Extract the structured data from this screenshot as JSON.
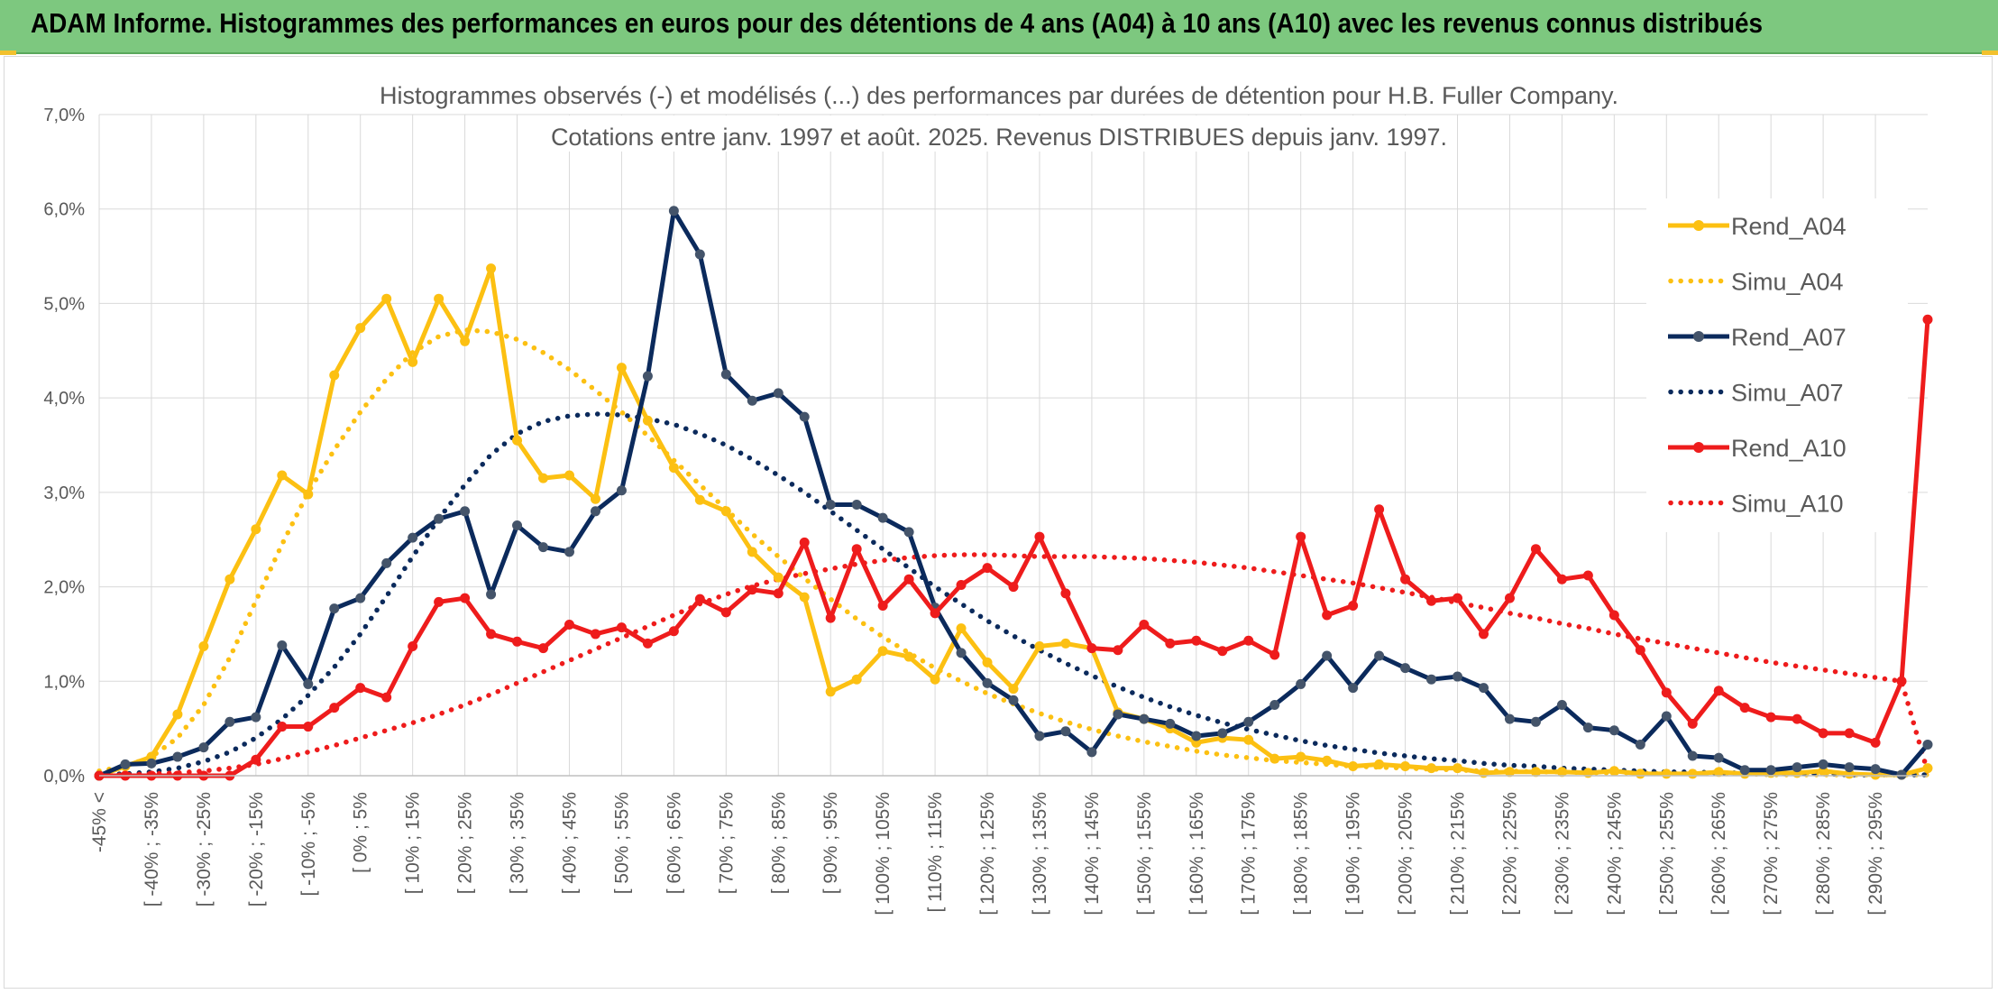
{
  "header": {
    "title": "ADAM Informe. Histogrammes des performances en euros pour des détentions de 4 ans (A04) à 10 ans (A10) avec les revenus connus distribués"
  },
  "chart_data": {
    "type": "line",
    "title": "Histogrammes observés (-) et modélisés (...) des performances par durées de détention pour H.B. Fuller Company.",
    "subtitle": "Cotations entre janv. 1997 et août. 2025. Revenus DISTRIBUES depuis janv. 1997.",
    "xlabel": "",
    "ylabel": "",
    "ylim": [
      0,
      0.07
    ],
    "y_ticks": [
      "0,0%",
      "1,0%",
      "2,0%",
      "3,0%",
      "4,0%",
      "5,0%",
      "6,0%",
      "7,0%"
    ],
    "grid": true,
    "legend_position": "right",
    "tick_labels": [
      "-45% <",
      "[ -40% ; -35%",
      "[ -30% ; -25%",
      "[ -20% ; -15%",
      "[ -10% ; -5%",
      "[ 0% ; 5%",
      "[ 10% ; 15%",
      "[ 20% ; 25%",
      "[ 30% ; 35%",
      "[ 40% ; 45%",
      "[ 50% ; 55%",
      "[ 60% ; 65%",
      "[ 70% ; 75%",
      "[ 80% ; 85%",
      "[ 90% ; 95%",
      "[ 100% ; 105%",
      "[ 110% ; 115%",
      "[ 120% ; 125%",
      "[ 130% ; 135%",
      "[ 140% ; 145%",
      "[ 150% ; 155%",
      "[ 160% ; 165%",
      "[ 170% ; 175%",
      "[ 180% ; 185%",
      "[ 190% ; 195%",
      "[ 200% ; 205%",
      "[ 210% ; 215%",
      "[ 220% ; 225%",
      "[ 230% ; 235%",
      "[ 240% ; 245%",
      "[ 250% ; 255%",
      "[ 260% ; 265%",
      "[ 270% ; 275%",
      "[ 280% ; 285%",
      "[ 290% ; 295%"
    ],
    "series": [
      {
        "name": "Rend_A04",
        "style": "solid",
        "markers": true,
        "color": "#fcc012",
        "values": [
          0.0,
          0.001,
          0.002,
          0.0065,
          0.0137,
          0.0208,
          0.0261,
          0.0318,
          0.0298,
          0.0424,
          0.0474,
          0.0505,
          0.0438,
          0.0505,
          0.046,
          0.0537,
          0.0355,
          0.0315,
          0.0318,
          0.0293,
          0.0432,
          0.0376,
          0.0326,
          0.0292,
          0.028,
          0.0237,
          0.021,
          0.0189,
          0.0089,
          0.0102,
          0.0132,
          0.0126,
          0.0102,
          0.0156,
          0.012,
          0.0092,
          0.0137,
          0.014,
          0.0135,
          0.0067,
          0.006,
          0.005,
          0.0035,
          0.004,
          0.0038,
          0.0018,
          0.002,
          0.0016,
          0.001,
          0.0012,
          0.001,
          0.0008,
          0.0008,
          0.0003,
          0.0004,
          0.0004,
          0.0004,
          0.0003,
          0.0005,
          0.0002,
          0.0002,
          0.0002,
          0.0004,
          0.0002,
          0.0003,
          0.0003,
          0.0005,
          0.0002,
          0.0001,
          0.0001,
          0.0008
        ]
      },
      {
        "name": "Simu_A04",
        "style": "dotted",
        "markers": false,
        "color": "#fcc012",
        "values": [
          0.0005,
          0.001,
          0.002,
          0.004,
          0.0075,
          0.0125,
          0.0185,
          0.0245,
          0.03,
          0.0345,
          0.0385,
          0.042,
          0.0448,
          0.0465,
          0.0472,
          0.047,
          0.0462,
          0.0448,
          0.043,
          0.0408,
          0.0385,
          0.036,
          0.0334,
          0.0308,
          0.0282,
          0.0256,
          0.0232,
          0.0209,
          0.0187,
          0.0166,
          0.0147,
          0.013,
          0.0114,
          0.01,
          0.0087,
          0.0076,
          0.0066,
          0.0057,
          0.0049,
          0.0042,
          0.0036,
          0.0031,
          0.0026,
          0.0022,
          0.0019,
          0.0016,
          0.0014,
          0.0012,
          0.001,
          0.0009,
          0.0008,
          0.0007,
          0.0006,
          0.0005,
          0.0005,
          0.0004,
          0.0004,
          0.0003,
          0.0003,
          0.0003,
          0.0002,
          0.0002,
          0.0002,
          0.0002,
          0.0001,
          0.0001,
          0.0001,
          0.0001,
          0.0001,
          0.0001,
          0.0001
        ]
      },
      {
        "name": "Rend_A07",
        "style": "solid",
        "markers": true,
        "color": "#0b2a5c",
        "values": [
          0.0,
          0.0012,
          0.0013,
          0.002,
          0.003,
          0.0057,
          0.0062,
          0.0138,
          0.0097,
          0.0177,
          0.0188,
          0.0225,
          0.0252,
          0.0272,
          0.028,
          0.0192,
          0.0265,
          0.0242,
          0.0237,
          0.028,
          0.0302,
          0.0423,
          0.0598,
          0.0552,
          0.0425,
          0.0397,
          0.0405,
          0.038,
          0.0287,
          0.0287,
          0.0273,
          0.0258,
          0.0178,
          0.013,
          0.0098,
          0.008,
          0.0042,
          0.0047,
          0.0025,
          0.0065,
          0.006,
          0.0055,
          0.0042,
          0.0045,
          0.0057,
          0.0075,
          0.0097,
          0.0127,
          0.0093,
          0.0127,
          0.0114,
          0.0102,
          0.0105,
          0.0093,
          0.006,
          0.0057,
          0.0075,
          0.0051,
          0.0048,
          0.0033,
          0.0063,
          0.0021,
          0.0019,
          0.0006,
          0.0006,
          0.0009,
          0.0012,
          0.0009,
          0.0007,
          0.0001,
          0.0033
        ]
      },
      {
        "name": "Simu_A07",
        "style": "dotted",
        "markers": false,
        "color": "#0b2a5c",
        "values": [
          0.0001,
          0.0002,
          0.0004,
          0.0008,
          0.0015,
          0.0025,
          0.004,
          0.006,
          0.0085,
          0.0115,
          0.015,
          0.019,
          0.0232,
          0.0272,
          0.0308,
          0.034,
          0.0362,
          0.0375,
          0.0381,
          0.0383,
          0.0382,
          0.0378,
          0.0372,
          0.0362,
          0.035,
          0.0335,
          0.0318,
          0.03,
          0.028,
          0.026,
          0.024,
          0.022,
          0.02,
          0.0182,
          0.0164,
          0.0148,
          0.0133,
          0.0119,
          0.0106,
          0.0094,
          0.0083,
          0.0073,
          0.0064,
          0.0056,
          0.0049,
          0.0043,
          0.0037,
          0.0032,
          0.0028,
          0.0024,
          0.0021,
          0.0018,
          0.0016,
          0.0013,
          0.0011,
          0.001,
          0.0008,
          0.0007,
          0.0006,
          0.0005,
          0.0004,
          0.0004,
          0.0003,
          0.0003,
          0.0002,
          0.0002,
          0.0002,
          0.0001,
          0.0001,
          0.0001,
          0.0001
        ]
      },
      {
        "name": "Rend_A10",
        "style": "solid",
        "markers": true,
        "color": "#ee1c1c",
        "values": [
          0.0,
          0.0,
          0.0,
          0.0,
          0.0,
          0.0,
          0.0017,
          0.0052,
          0.0052,
          0.0072,
          0.0093,
          0.0083,
          0.0137,
          0.0184,
          0.0188,
          0.015,
          0.0142,
          0.0135,
          0.016,
          0.015,
          0.0157,
          0.014,
          0.0153,
          0.0187,
          0.0173,
          0.0197,
          0.0193,
          0.0247,
          0.0167,
          0.024,
          0.018,
          0.0208,
          0.0172,
          0.0202,
          0.022,
          0.02,
          0.0253,
          0.0193,
          0.0135,
          0.0133,
          0.016,
          0.014,
          0.0143,
          0.0132,
          0.0143,
          0.0128,
          0.0253,
          0.017,
          0.018,
          0.0282,
          0.0208,
          0.0185,
          0.0188,
          0.015,
          0.0188,
          0.024,
          0.0208,
          0.0212,
          0.017,
          0.0133,
          0.0088,
          0.0055,
          0.009,
          0.0072,
          0.0062,
          0.006,
          0.0045,
          0.0045,
          0.0035,
          0.01,
          0.0483
        ]
      },
      {
        "name": "Simu_A10",
        "style": "dotted",
        "markers": false,
        "color": "#ee1c1c",
        "values": [
          0.0,
          0.0001,
          0.0002,
          0.0003,
          0.0005,
          0.0008,
          0.0012,
          0.0018,
          0.0025,
          0.0032,
          0.004,
          0.0048,
          0.0056,
          0.0065,
          0.0075,
          0.0086,
          0.0098,
          0.011,
          0.0122,
          0.0134,
          0.0146,
          0.0158,
          0.017,
          0.0182,
          0.0192,
          0.0201,
          0.0208,
          0.0214,
          0.0219,
          0.0224,
          0.0228,
          0.0231,
          0.0233,
          0.0234,
          0.0234,
          0.0233,
          0.0232,
          0.0232,
          0.0232,
          0.0231,
          0.023,
          0.0228,
          0.0226,
          0.0223,
          0.022,
          0.0216,
          0.0212,
          0.0208,
          0.0204,
          0.0199,
          0.0194,
          0.0189,
          0.0183,
          0.0178,
          0.0172,
          0.0167,
          0.0161,
          0.0156,
          0.015,
          0.0145,
          0.014,
          0.0135,
          0.013,
          0.0125,
          0.012,
          0.0116,
          0.0112,
          0.0108,
          0.0104,
          0.01,
          0.0004
        ]
      }
    ]
  }
}
